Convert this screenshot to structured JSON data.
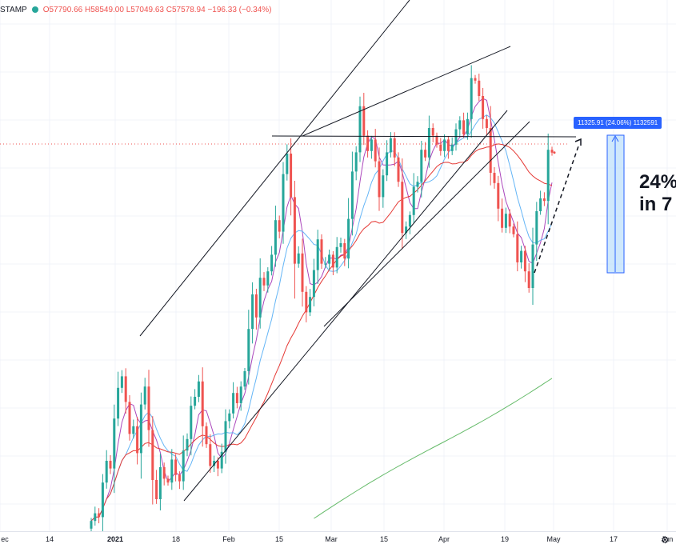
{
  "header": {
    "symbol": "STAMP",
    "values": "O57790.66 H58549.00 L57049.63 C57578.94 −196.33 (−0.34%)",
    "status_color": "#26a69a"
  },
  "x_axis": {
    "ticks": [
      {
        "label": "ec",
        "bold": false
      },
      {
        "label": "14",
        "bold": false
      },
      {
        "label": "2021",
        "bold": true
      },
      {
        "label": "18",
        "bold": false
      },
      {
        "label": "Feb",
        "bold": false
      },
      {
        "label": "15",
        "bold": false
      },
      {
        "label": "Mar",
        "bold": false
      },
      {
        "label": "15",
        "bold": false
      },
      {
        "label": "Apr",
        "bold": false
      },
      {
        "label": "19",
        "bold": false
      },
      {
        "label": "May",
        "bold": false
      },
      {
        "label": "17",
        "bold": false
      },
      {
        "label": "Jun",
        "bold": false
      }
    ]
  },
  "measure_badge": "11325.91 (24.06%) 1132591",
  "annotation": {
    "line1": "24%",
    "line2": "in 7"
  },
  "settings_icon": "gear-icon",
  "colors": {
    "up": "#26a69a",
    "down": "#ef5350",
    "ma_fast": "#ab47bc",
    "ma_mid": "#64b5f6",
    "ma_slow": "#e53935",
    "ma_long": "#66bb6a",
    "measure": "#2962ff"
  },
  "chart_data": {
    "type": "candlestick",
    "indicators": [
      "moving-average-pink",
      "moving-average-blue",
      "moving-average-red",
      "moving-average-green"
    ],
    "last_close": 57578.94,
    "measured_move_percent": 24.06,
    "closes": [
      28800,
      29400,
      29100,
      31800,
      33500,
      32900,
      36800,
      39200,
      40100,
      38100,
      35600,
      36200,
      34100,
      37900,
      39300,
      35900,
      32000,
      30500,
      33000,
      32100,
      31800,
      33600,
      32400,
      31900,
      34300,
      35200,
      37800,
      38500,
      39700,
      36200,
      34800,
      33100,
      33500,
      32900,
      34200,
      36600,
      37200,
      38800,
      38000,
      39300,
      40500,
      43800,
      46500,
      44700,
      47800,
      47200,
      48300,
      49600,
      52300,
      51400,
      55900,
      57500,
      54100,
      48900,
      49700,
      46700,
      45100,
      46300,
      48400,
      50800,
      48900,
      48900,
      49600,
      48600,
      50200,
      50500,
      49300,
      52400,
      56100,
      57600,
      61200,
      58900,
      57700,
      58600,
      56900,
      54100,
      55800,
      57600,
      58700,
      57200,
      55300,
      51300,
      51800,
      52700,
      54900,
      55300,
      57800,
      57200,
      59500,
      58900,
      58200,
      57700,
      58600,
      57700,
      58200,
      59400,
      60100,
      59000,
      60200,
      63400,
      63200,
      62000,
      60200,
      59500,
      56000,
      55200,
      53200,
      51700,
      52800,
      51800,
      51200,
      49000,
      49900,
      48300,
      47000,
      50400,
      53000,
      54000,
      53800,
      57800,
      57578.94
    ]
  }
}
